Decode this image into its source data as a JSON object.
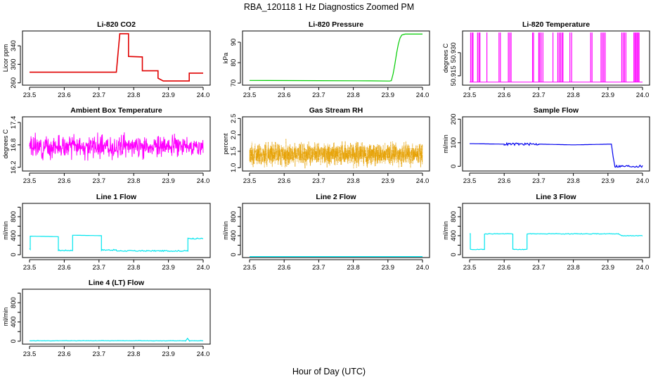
{
  "page": {
    "title": "RBA_120118  1 Hz Diagnostics Zoomed PM",
    "xlabel": "Hour of Day (UTC)"
  },
  "chart_data": [
    {
      "id": "co2",
      "type": "line",
      "title": "Li-820 CO2",
      "ylabel": "Licor ppm",
      "color": "#e00000",
      "xlim": [
        23.5,
        24.0
      ],
      "ylim": [
        255,
        372
      ],
      "yticks": [
        260,
        300,
        340
      ],
      "xticks": [
        23.5,
        23.6,
        23.7,
        23.8,
        23.9,
        24.0
      ],
      "series": [
        {
          "name": "CO2",
          "x": [
            23.5,
            23.75,
            23.75,
            23.76,
            23.76,
            23.785,
            23.785,
            23.825,
            23.825,
            23.87,
            23.87,
            23.885,
            23.885,
            23.96,
            23.96,
            24.0
          ],
          "y": [
            283,
            283,
            283,
            366,
            366,
            366,
            317,
            316,
            286,
            286,
            270,
            264,
            264,
            264,
            281,
            281
          ]
        }
      ]
    },
    {
      "id": "pressure",
      "type": "line",
      "title": "Li-820 Pressure",
      "ylabel": "kPa",
      "color": "#00cc00",
      "xlim": [
        23.5,
        24.0
      ],
      "ylim": [
        69,
        95.5
      ],
      "yticks": [
        70,
        80,
        90
      ],
      "xticks": [
        23.5,
        23.6,
        23.7,
        23.8,
        23.9,
        24.0
      ],
      "series": [
        {
          "name": "Pressure",
          "x": [
            23.5,
            23.7,
            23.85,
            23.905,
            23.91,
            23.915,
            23.92,
            23.925,
            23.93,
            23.935,
            23.94,
            23.95,
            24.0
          ],
          "y": [
            71.3,
            71.2,
            71.1,
            71.0,
            71.2,
            74.5,
            79.0,
            84.5,
            89.0,
            92.0,
            93.5,
            94.0,
            94.0
          ]
        }
      ]
    },
    {
      "id": "temp",
      "type": "line",
      "title": "Li-820 Temperature",
      "ylabel": "degrees C",
      "color": "#ff00ff",
      "xlim": [
        23.5,
        24.0
      ],
      "ylim": [
        50.909,
        50.944
      ],
      "yticks": [
        50.915,
        50.93
      ],
      "ytick_labels": [
        "50.915",
        "50.930"
      ],
      "xticks": [
        23.5,
        23.6,
        23.7,
        23.8,
        23.9,
        24.0
      ],
      "series": [
        {
          "name": "Temperature",
          "style": "spikes",
          "base": 50.911,
          "top": 50.943,
          "spikes_x": [
            23.503,
            23.507,
            23.51,
            23.523,
            23.527,
            23.53,
            23.55,
            23.585,
            23.589,
            23.612,
            23.616,
            23.62,
            23.682,
            23.685,
            23.7,
            23.703,
            23.707,
            23.712,
            23.741,
            23.755,
            23.759,
            23.763,
            23.767,
            23.77,
            23.79,
            23.795,
            23.85,
            23.854,
            23.88,
            23.884,
            23.888,
            23.892,
            23.94,
            23.944,
            23.948,
            23.952,
            23.975,
            23.978,
            23.981,
            23.984,
            23.987,
            23.99
          ]
        }
      ]
    },
    {
      "id": "ambient",
      "type": "line",
      "title": "Ambient Box Temperature",
      "ylabel": "degrees C",
      "color": "#ff00ff",
      "xlim": [
        23.5,
        24.0
      ],
      "ylim": [
        16.1,
        17.55
      ],
      "yticks": [
        16.2,
        16.8,
        17.4
      ],
      "xticks": [
        23.5,
        23.6,
        23.7,
        23.8,
        23.9,
        24.0
      ],
      "series": [
        {
          "name": "Ambient",
          "style": "noise",
          "mean": 16.75,
          "amp": 0.42,
          "n": 600,
          "seed": 3
        }
      ]
    },
    {
      "id": "rh",
      "type": "scatter",
      "title": "Gas Stream RH",
      "ylabel": "percent",
      "color": "#e6a000",
      "xlim": [
        23.5,
        24.0
      ],
      "ylim": [
        0.9,
        2.55
      ],
      "yticks": [
        1.0,
        1.5,
        2.0,
        2.5
      ],
      "ytick_labels": [
        "1.0",
        "1.5",
        "2.0",
        "2.5"
      ],
      "xticks": [
        23.5,
        23.6,
        23.7,
        23.8,
        23.9,
        24.0
      ],
      "series": [
        {
          "name": "RH",
          "style": "noise",
          "mean": 1.42,
          "amp": 0.5,
          "n": 1800,
          "seed": 7
        }
      ]
    },
    {
      "id": "sampleflow",
      "type": "line",
      "title": "Sample Flow",
      "ylabel": "ml/min",
      "color": "#0000ee",
      "xlim": [
        23.5,
        24.0
      ],
      "ylim": [
        -20,
        210
      ],
      "yticks": [
        0,
        100,
        200
      ],
      "xticks": [
        23.5,
        23.6,
        23.7,
        23.8,
        23.9,
        24.0
      ],
      "series": [
        {
          "name": "Sample Flow",
          "x": [
            23.5,
            23.6,
            23.7,
            23.8,
            23.91,
            23.915,
            23.92,
            24.0
          ],
          "y": [
            96,
            94,
            94,
            91,
            94,
            40,
            0,
            0
          ],
          "jitter": 5
        }
      ]
    },
    {
      "id": "line1",
      "type": "line",
      "title": "Line 1 Flow",
      "ylabel": "ml/min",
      "color": "#00e5ee",
      "xlim": [
        23.5,
        24.0
      ],
      "ylim": [
        -60,
        1080
      ],
      "yticks": [
        0,
        200,
        400,
        600,
        800,
        1000
      ],
      "ytick_labels": [
        "0",
        "",
        "400",
        "",
        "800",
        ""
      ],
      "xticks": [
        23.5,
        23.6,
        23.7,
        23.8,
        23.9,
        24.0
      ],
      "series": [
        {
          "name": "Line 1",
          "x": [
            23.5,
            23.502,
            23.502,
            23.583,
            23.583,
            23.624,
            23.624,
            23.707,
            23.707,
            23.75,
            23.75,
            23.956,
            23.956,
            24.0
          ],
          "y": [
            120,
            120,
            390,
            380,
            90,
            90,
            410,
            400,
            100,
            100,
            80,
            80,
            340,
            340
          ],
          "jitter": 12
        }
      ]
    },
    {
      "id": "line2",
      "type": "line",
      "title": "Line 2 Flow",
      "ylabel": "ml/min",
      "color": "#00e5ee",
      "xlim": [
        23.5,
        24.0
      ],
      "ylim": [
        -60,
        1080
      ],
      "yticks": [
        0,
        200,
        400,
        600,
        800,
        1000
      ],
      "ytick_labels": [
        "0",
        "",
        "400",
        "",
        "800",
        ""
      ],
      "xticks": [
        23.5,
        23.6,
        23.7,
        23.8,
        23.9,
        24.0
      ],
      "series": [
        {
          "name": "Line 2",
          "x": [
            23.5,
            24.0
          ],
          "y": [
            -40,
            -40
          ]
        }
      ]
    },
    {
      "id": "line3",
      "type": "line",
      "title": "Line 3 Flow",
      "ylabel": "ml/min",
      "color": "#00e5ee",
      "xlim": [
        23.5,
        24.0
      ],
      "ylim": [
        -60,
        1080
      ],
      "yticks": [
        0,
        200,
        400,
        600,
        800,
        1000
      ],
      "ytick_labels": [
        "0",
        "",
        "400",
        "",
        "800",
        ""
      ],
      "xticks": [
        23.5,
        23.6,
        23.7,
        23.8,
        23.9,
        24.0
      ],
      "series": [
        {
          "name": "Line 3",
          "x": [
            23.5,
            23.502,
            23.502,
            23.543,
            23.543,
            23.625,
            23.625,
            23.666,
            23.666,
            23.93,
            23.94,
            24.0
          ],
          "y": [
            440,
            440,
            110,
            110,
            440,
            440,
            110,
            110,
            440,
            440,
            400,
            400
          ],
          "jitter": 6
        }
      ]
    },
    {
      "id": "line4",
      "type": "line",
      "title": "Line 4 (LT) Flow",
      "ylabel": "ml/min",
      "color": "#00e5ee",
      "xlim": [
        23.5,
        24.0
      ],
      "ylim": [
        -60,
        1080
      ],
      "yticks": [
        0,
        200,
        400,
        600,
        800,
        1000
      ],
      "ytick_labels": [
        "0",
        "",
        "400",
        "",
        "800",
        ""
      ],
      "xticks": [
        23.5,
        23.6,
        23.7,
        23.8,
        23.9,
        24.0
      ],
      "series": [
        {
          "name": "Line 4",
          "x": [
            23.5,
            23.95,
            23.955,
            23.96,
            23.965,
            24.0
          ],
          "y": [
            10,
            10,
            60,
            10,
            10,
            10
          ],
          "jitter": 4
        }
      ]
    }
  ]
}
